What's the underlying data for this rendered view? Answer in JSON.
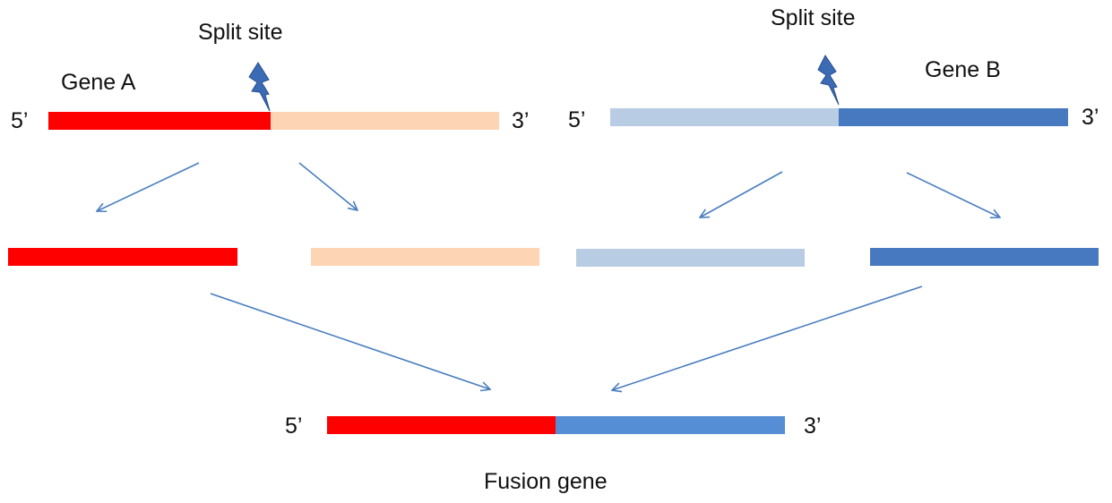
{
  "labels": {
    "split_site_a": "Split site",
    "split_site_b": "Split site",
    "gene_a": "Gene A",
    "gene_b": "Gene B",
    "five_prime": "5’",
    "three_prime": "3’",
    "fusion_gene": "Fusion gene"
  },
  "colors": {
    "gene_a_5prime": "#ff0000",
    "gene_a_3prime": "#fdd5b4",
    "gene_b_5prime": "#b8cce4",
    "gene_b_3prime": "#4679c0",
    "fusion_3prime": "#558ed5",
    "arrow": "#4a7ebf",
    "lightning_bolt": "#3b6bb5"
  },
  "icons": {
    "split_marker": "lightning-bolt-icon"
  }
}
